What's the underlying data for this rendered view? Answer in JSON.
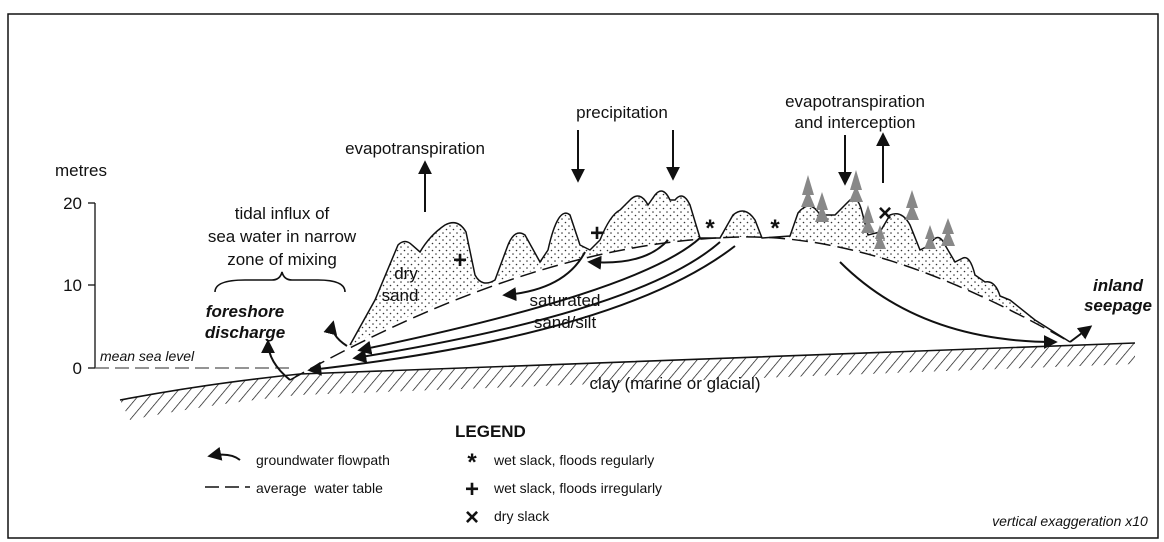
{
  "axis": {
    "label": "metres",
    "ticks": [
      "20",
      "10",
      "0"
    ]
  },
  "labels": {
    "mean_sea_level": "mean sea level",
    "evapotranspiration": "evapotranspiration",
    "precipitation": "precipitation",
    "evapotranspiration_interception": [
      "evapotranspiration",
      "and interception"
    ],
    "tidal_influx": [
      "tidal influx of",
      "sea water in narrow",
      "zone of mixing"
    ],
    "dry_sand": [
      "dry",
      "sand"
    ],
    "foreshore_discharge": [
      "foreshore",
      "discharge"
    ],
    "saturated": [
      "saturated",
      "sand/silt"
    ],
    "inland_seepage": [
      "inland",
      "seepage"
    ],
    "clay": "clay (marine or glacial)",
    "exaggeration": "vertical exaggeration x10"
  },
  "symbols": [
    "+",
    "+",
    "*",
    "*",
    "×"
  ],
  "legend": {
    "title": "LEGEND",
    "items": [
      {
        "symbol": "",
        "text": "groundwater flowpath"
      },
      {
        "symbol": "",
        "text": "average  water table"
      },
      {
        "symbol": "*",
        "text": "wet slack, floods regularly"
      },
      {
        "symbol": "+",
        "text": "wet slack, floods irregularly"
      },
      {
        "symbol": "×",
        "text": "dry slack"
      }
    ]
  }
}
